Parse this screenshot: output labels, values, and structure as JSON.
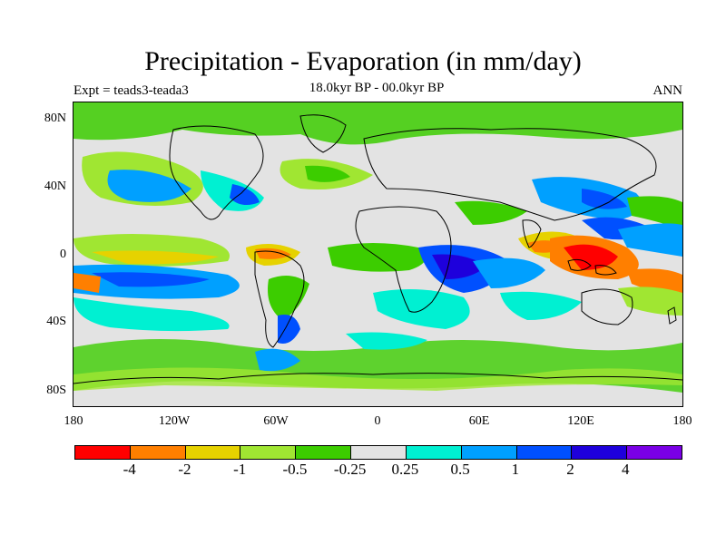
{
  "title": "Precipitation - Evaporation (in mm/day)",
  "subtitle": "18.0kyr BP - 00.0kyr BP",
  "left_label": "Expt = teads3-teada3",
  "right_label": "ANN",
  "y_ticks": [
    "80N",
    "40N",
    "0",
    "40S",
    "80S"
  ],
  "x_ticks": [
    "180",
    "120W",
    "60W",
    "0",
    "60E",
    "120E",
    "180"
  ],
  "legend": {
    "colors": [
      "#ff0000",
      "#ff7f00",
      "#e6d200",
      "#a0e632",
      "#3ccd00",
      "#e3e3e3",
      "#00f0d2",
      "#00a0ff",
      "#0050ff",
      "#1e00dc",
      "#7a00e6"
    ],
    "labels": [
      "-4",
      "-2",
      "-1",
      "-0.5",
      "-0.25",
      "0.25",
      "0.5",
      "1",
      "2",
      "4"
    ]
  }
}
